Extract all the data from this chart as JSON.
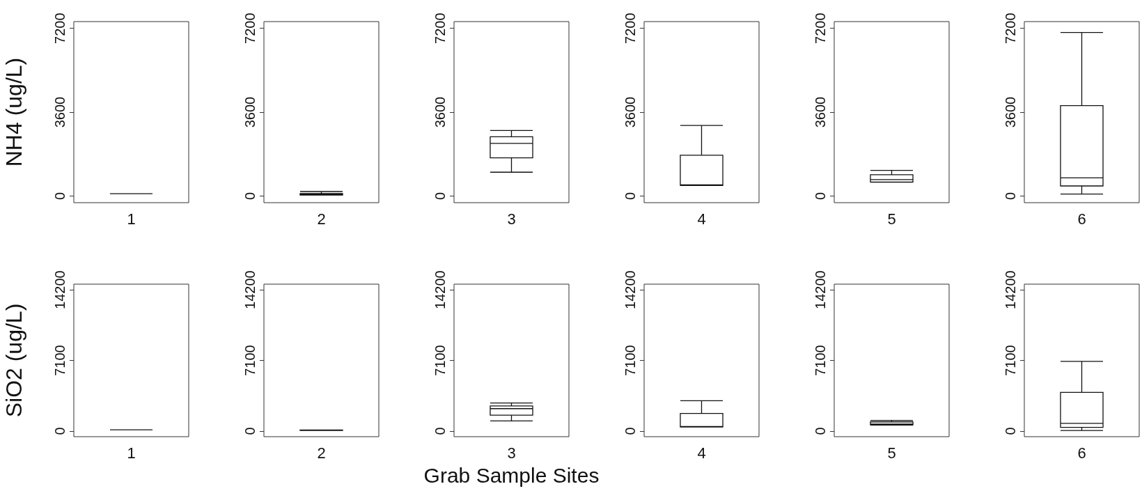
{
  "chart_data": [
    {
      "type": "box",
      "ylabel": "NH4 (ug/L)",
      "categories": [
        "1"
      ],
      "boxes": [
        {
          "low": 100,
          "q1": 100,
          "median": 100,
          "q3": 100,
          "high": 100
        }
      ],
      "ylim": [
        -288,
        7488
      ],
      "yticks": [
        0,
        3600,
        7200
      ]
    },
    {
      "type": "box",
      "categories": [
        "2"
      ],
      "boxes": [
        {
          "low": 40,
          "q1": 40,
          "median": 75,
          "q3": 106,
          "high": 190
        }
      ],
      "ylim": [
        -288,
        7488
      ],
      "yticks": [
        0,
        3600,
        7200
      ]
    },
    {
      "type": "box",
      "categories": [
        "3"
      ],
      "boxes": [
        {
          "low": 1020,
          "q1": 1640,
          "median": 2260,
          "q3": 2540,
          "high": 2810
        }
      ],
      "ylim": [
        -288,
        7488
      ],
      "yticks": [
        0,
        3600,
        7200
      ]
    },
    {
      "type": "box",
      "categories": [
        "4"
      ],
      "boxes": [
        {
          "low": 450,
          "q1": 450,
          "median": 480,
          "q3": 1750,
          "high": 3030
        }
      ],
      "ylim": [
        -288,
        7488
      ],
      "yticks": [
        0,
        3600,
        7200
      ]
    },
    {
      "type": "box",
      "categories": [
        "5"
      ],
      "boxes": [
        {
          "low": 590,
          "q1": 600,
          "median": 700,
          "q3": 915,
          "high": 1100
        }
      ],
      "ylim": [
        -288,
        7488
      ],
      "yticks": [
        0,
        3600,
        7200
      ]
    },
    {
      "type": "box",
      "categories": [
        "6"
      ],
      "boxes": [
        {
          "low": 85,
          "q1": 430,
          "median": 780,
          "q3": 3880,
          "high": 7020
        }
      ],
      "ylim": [
        -288,
        7488
      ],
      "yticks": [
        0,
        3600,
        7200
      ]
    },
    {
      "type": "box",
      "ylabel": "SiO2 (ug/L)",
      "categories": [
        "1"
      ],
      "boxes": [
        {
          "low": 125,
          "q1": 125,
          "median": 125,
          "q3": 125,
          "high": 125
        }
      ],
      "ylim": [
        -568,
        14768
      ],
      "yticks": [
        0,
        7100,
        14200
      ]
    },
    {
      "type": "box",
      "categories": [
        "2"
      ],
      "boxes": [
        {
          "low": 50,
          "q1": 50,
          "median": 75,
          "q3": 100,
          "high": 100
        }
      ],
      "ylim": [
        -568,
        14768
      ],
      "yticks": [
        0,
        7100,
        14200
      ]
    },
    {
      "type": "box",
      "xlabel": "Grab Sample Sites",
      "categories": [
        "3"
      ],
      "boxes": [
        {
          "low": 1020,
          "q1": 1600,
          "median": 2250,
          "q3": 2520,
          "high": 2820
        }
      ],
      "ylim": [
        -568,
        14768
      ],
      "yticks": [
        0,
        7100,
        14200
      ]
    },
    {
      "type": "box",
      "categories": [
        "4"
      ],
      "boxes": [
        {
          "low": 400,
          "q1": 400,
          "median": 450,
          "q3": 1770,
          "high": 3050
        }
      ],
      "ylim": [
        -568,
        14768
      ],
      "yticks": [
        0,
        7100,
        14200
      ]
    },
    {
      "type": "box",
      "categories": [
        "5"
      ],
      "boxes": [
        {
          "low": 600,
          "q1": 620,
          "median": 700,
          "q3": 920,
          "high": 1070
        }
      ],
      "ylim": [
        -568,
        14768
      ],
      "yticks": [
        0,
        7100,
        14200
      ]
    },
    {
      "type": "box",
      "categories": [
        "6"
      ],
      "boxes": [
        {
          "low": 50,
          "q1": 370,
          "median": 770,
          "q3": 3890,
          "high": 7010
        }
      ],
      "ylim": [
        -568,
        14768
      ],
      "yticks": [
        0,
        7100,
        14200
      ]
    }
  ]
}
